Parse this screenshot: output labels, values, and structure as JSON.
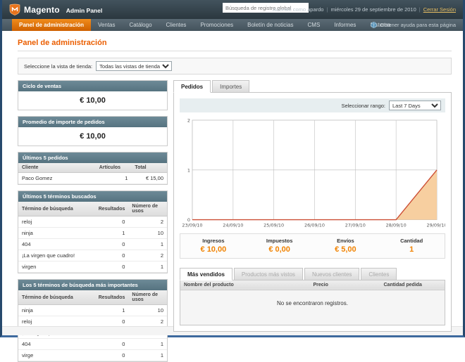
{
  "header": {
    "brand": "Magento",
    "brand_suffix": "Admin Panel",
    "search_placeholder": "Búsqueda de registro global",
    "logged_in_as": "Accedió como apardo",
    "date": "miércoles 29 de septiembre de 2010",
    "logout": "Cerrar Sesión"
  },
  "nav": {
    "items": [
      {
        "label": "Panel de administración",
        "active": true
      },
      {
        "label": "Ventas",
        "active": false
      },
      {
        "label": "Catálogo",
        "active": false
      },
      {
        "label": "Clientes",
        "active": false
      },
      {
        "label": "Promociones",
        "active": false
      },
      {
        "label": "Boletín de noticias",
        "active": false
      },
      {
        "label": "CMS",
        "active": false
      },
      {
        "label": "Informes",
        "active": false
      },
      {
        "label": "Sistema",
        "active": false
      }
    ],
    "help": "Obtener ayuda para esta página"
  },
  "page": {
    "title": "Panel de administración",
    "store_view_label": "Seleccione la vista de tienda:",
    "store_view_value": "Todas las vistas de tienda"
  },
  "left": {
    "lifetime": {
      "title": "Ciclo de ventas",
      "value": "€ 10,00"
    },
    "average": {
      "title": "Promedio de importe de pedidos",
      "value": "€ 10,00"
    },
    "last_orders": {
      "title": "Últimos 5 pedidos",
      "headers": [
        "Cliente",
        "Artículos",
        "Total"
      ],
      "rows": [
        [
          "Paco Gomez",
          "1",
          "€ 15,00"
        ]
      ]
    },
    "last_terms": {
      "title": "Últimos 5 términos buscados",
      "headers": [
        "Término de búsqueda",
        "Resultados",
        "Número de usos"
      ],
      "rows": [
        [
          "reloj",
          "0",
          "2"
        ],
        [
          "ninja",
          "1",
          "10"
        ],
        [
          "404",
          "0",
          "1"
        ],
        [
          "¡La virgen que cuadro!",
          "0",
          "2"
        ],
        [
          "virgen",
          "0",
          "1"
        ]
      ]
    },
    "top_terms": {
      "title": "Los 5 términos de búsqueda más importantes",
      "headers": [
        "Término de búsqueda",
        "Resultados",
        "Número de usos"
      ],
      "rows": [
        [
          "ninja",
          "1",
          "10"
        ],
        [
          "reloj",
          "0",
          "2"
        ],
        [
          "¡La virgen que cuadro!",
          "0",
          "2"
        ],
        [
          "404",
          "0",
          "1"
        ],
        [
          "virge",
          "0",
          "1"
        ]
      ]
    }
  },
  "dashboard": {
    "tabs": [
      {
        "label": "Pedidos",
        "active": true
      },
      {
        "label": "Importes",
        "active": false
      }
    ],
    "range_label": "Seleccionar rango:",
    "range_value": "Last 7 Days",
    "stats": [
      {
        "label": "Ingresos",
        "value": "€ 10,00"
      },
      {
        "label": "Impuestos",
        "value": "€ 0,00"
      },
      {
        "label": "Envíos",
        "value": "€ 5,00"
      },
      {
        "label": "Cantidad",
        "value": "1"
      }
    ],
    "bottom_tabs": [
      {
        "label": "Más vendidos",
        "active": true
      },
      {
        "label": "Productos más vistos",
        "active": false
      },
      {
        "label": "Nuevos clientes",
        "active": false
      },
      {
        "label": "Clientes",
        "active": false
      }
    ],
    "products_table": {
      "headers": [
        "Nombre del producto",
        "Precio",
        "Cantidad pedida"
      ],
      "empty": "No se encontraron registros."
    }
  },
  "chart_data": {
    "type": "area",
    "title": "",
    "x": [
      "23/09/10",
      "24/09/10",
      "25/09/10",
      "26/09/10",
      "27/09/10",
      "28/09/10",
      "29/09/10"
    ],
    "values": [
      0,
      0,
      0,
      0,
      0,
      0,
      1
    ],
    "ylim": [
      0,
      2
    ],
    "yticks": [
      0,
      1,
      2
    ],
    "grid": true,
    "legend": "none",
    "line_color": "#cc4f35",
    "fill_color": "#f7cfa0"
  },
  "colors": {
    "accent_orange": "#eb5e00",
    "active_nav_orange": "#e07000",
    "panel_header_blue": "#60808d",
    "stat_value_orange": "#f18200",
    "header_dark": "#35434c"
  }
}
